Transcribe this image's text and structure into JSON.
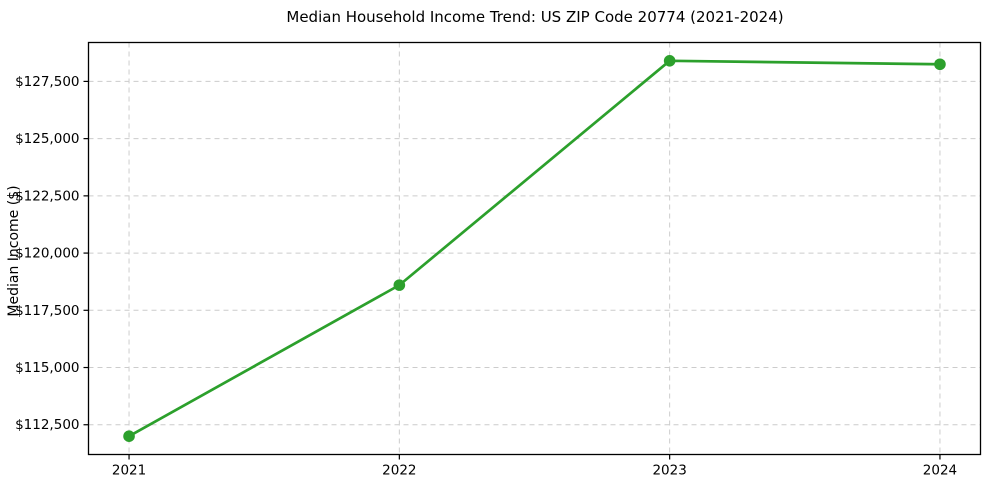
{
  "figure": {
    "background_color": "#ffffff",
    "plot_border_color": "#000000",
    "grid_color": "#cccccc",
    "text_color": "#000000"
  },
  "chart_data": {
    "type": "line",
    "title": "Median Household Income Trend: US ZIP Code 20774 (2021-2024)",
    "xlabel": "",
    "ylabel": "Median Income ($)",
    "x": [
      2021,
      2022,
      2023,
      2024
    ],
    "values": [
      112000,
      118600,
      128400,
      128250
    ],
    "series_name": "Median Household Income",
    "line_color": "#2ca02c",
    "marker": "circle",
    "grid": true,
    "legend_position": "none",
    "xlim": [
      2020.85,
      2024.15
    ],
    "ylim": [
      111200,
      129200
    ],
    "xticks": [
      {
        "value": 2021,
        "label": "2021"
      },
      {
        "value": 2022,
        "label": "2022"
      },
      {
        "value": 2023,
        "label": "2023"
      },
      {
        "value": 2024,
        "label": "2024"
      }
    ],
    "yticks": [
      {
        "value": 112500,
        "label": "$112,500"
      },
      {
        "value": 115000,
        "label": "$115,000"
      },
      {
        "value": 117500,
        "label": "$117,500"
      },
      {
        "value": 120000,
        "label": "$120,000"
      },
      {
        "value": 122500,
        "label": "$122,500"
      },
      {
        "value": 125000,
        "label": "$125,000"
      },
      {
        "value": 127500,
        "label": "$127,500"
      }
    ]
  }
}
